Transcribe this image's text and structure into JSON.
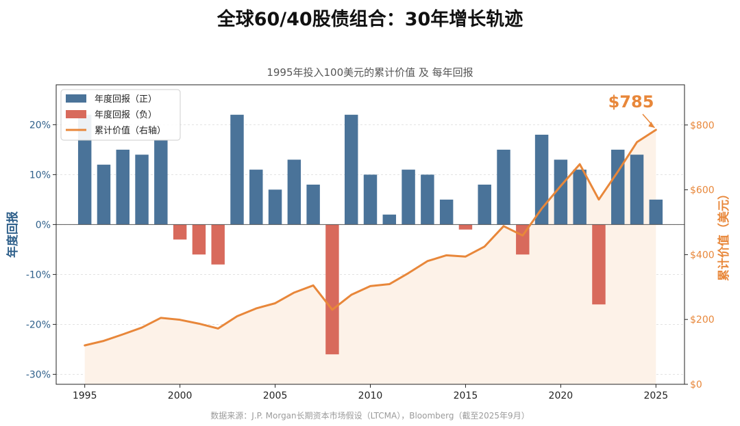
{
  "title": "全球60/40股债组合：30年增长轨迹",
  "subtitle": "1995年投入100美元的累计价值 及 每年回报",
  "source": "数据来源：J.P. Morgan长期资本市场假设（LTCMA），Bloomberg（截至2025年9月）",
  "colors": {
    "positive": "#4a7399",
    "negative": "#d86a5c",
    "line": "#e8873a",
    "area": "#fdf2e8",
    "left_axis": "#2e5f8a",
    "right_axis": "#e8873a"
  },
  "chart_data": {
    "type": "bar+line",
    "title": "全球60/40股债组合：30年增长轨迹",
    "subtitle": "1995年投入100美元的累计价值 及 每年回报",
    "xlabel": "",
    "ylabel_left": "年度回报",
    "ylabel_right": "累计价值（美元）",
    "x_ticks": [
      1995,
      2000,
      2005,
      2010,
      2015,
      2020,
      2025
    ],
    "x_tick_labels": [
      "1995",
      "2000",
      "2005",
      "2010",
      "2015",
      "2020",
      "2025"
    ],
    "y_left_ticks": [
      -30,
      -20,
      -10,
      0,
      10,
      20
    ],
    "y_left_tick_labels": [
      "-30%",
      "-20%",
      "-10%",
      "0%",
      "10%",
      "20%"
    ],
    "y_right_ticks": [
      0,
      200,
      400,
      600,
      800
    ],
    "y_right_tick_labels": [
      "$0",
      "$200",
      "$400",
      "$600",
      "$800"
    ],
    "xlim": [
      1993.5,
      2026.5
    ],
    "ylim_left": [
      -32,
      28
    ],
    "ylim_right": [
      0,
      924
    ],
    "legend": {
      "position": "top-left",
      "entries": [
        "年度回报（正）",
        "年度回报（负）",
        "累计价值（右轴）"
      ]
    },
    "years": [
      1995,
      1996,
      1997,
      1998,
      1999,
      2000,
      2001,
      2002,
      2003,
      2004,
      2005,
      2006,
      2007,
      2008,
      2009,
      2010,
      2011,
      2012,
      2013,
      2014,
      2015,
      2016,
      2017,
      2018,
      2019,
      2020,
      2021,
      2022,
      2023,
      2024,
      2025
    ],
    "annual_return_pct": [
      22,
      12,
      15,
      14,
      17,
      -3,
      -6,
      -8,
      22,
      11,
      7,
      13,
      8,
      -26,
      22,
      10,
      2,
      11,
      10,
      5,
      -1,
      8,
      15,
      -6,
      18,
      13,
      11,
      -16,
      15,
      14,
      5
    ],
    "cumulative_value": [
      120,
      134,
      154,
      175,
      205,
      199,
      187,
      172,
      210,
      234,
      250,
      283,
      305,
      230,
      276,
      303,
      309,
      343,
      380,
      398,
      394,
      425,
      488,
      459,
      542,
      612,
      679,
      570,
      656,
      747,
      785
    ],
    "annotation": {
      "text": "$785",
      "year": 2025,
      "value": 785
    }
  }
}
